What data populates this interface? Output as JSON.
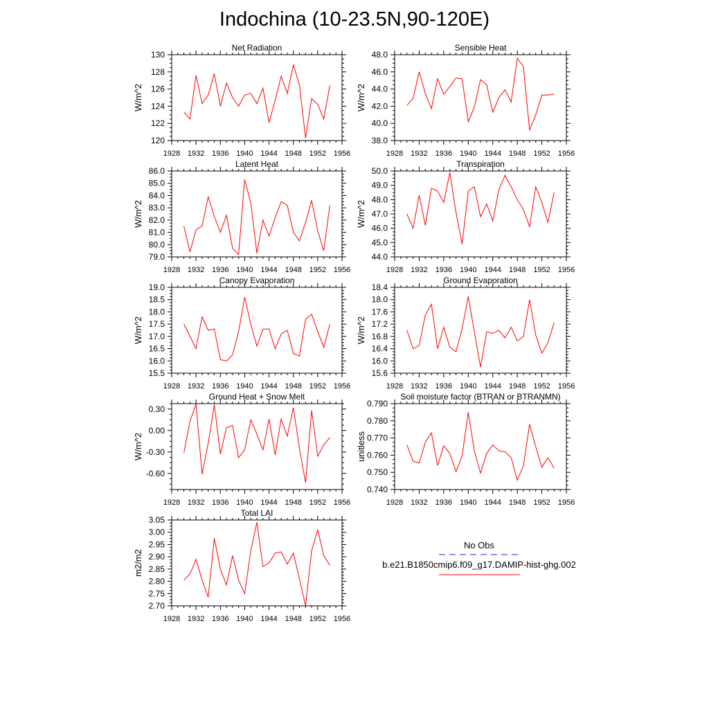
{
  "page": {
    "title": "Indochina (10-23.5N,90-120E)"
  },
  "legend": {
    "obs_label": "No Obs",
    "model_label": "b.e21.B1850cmip6.f09_g17.DAMIP-hist-ghg.002",
    "obs_color": "#2222cc",
    "model_color": "#ff0000"
  },
  "chart_data": [
    {
      "type": "line",
      "title": "Net Radiation",
      "ylabel": "W/m^2",
      "xlim": [
        1928,
        1956
      ],
      "xticks": [
        1928,
        1932,
        1936,
        1940,
        1944,
        1948,
        1952,
        1956
      ],
      "ylim": [
        120,
        130
      ],
      "yticks": [
        "120",
        "122",
        "124",
        "126",
        "128",
        "130"
      ],
      "x": [
        1930,
        1931,
        1932,
        1933,
        1934,
        1935,
        1936,
        1937,
        1938,
        1939,
        1940,
        1941,
        1942,
        1943,
        1944,
        1945,
        1946,
        1947,
        1948,
        1949,
        1950,
        1951,
        1952,
        1953,
        1954
      ],
      "series": [
        {
          "color": "#ff0000",
          "values": [
            123.3,
            122.5,
            127.6,
            124.3,
            125.3,
            127.8,
            124.0,
            126.7,
            125.0,
            124.0,
            125.3,
            125.5,
            124.3,
            126.1,
            122.1,
            124.7,
            127.5,
            125.5,
            128.8,
            126.5,
            120.3,
            124.9,
            124.2,
            122.5,
            126.4
          ]
        }
      ]
    },
    {
      "type": "line",
      "title": "Sensible Heat",
      "ylabel": "W/m^2",
      "xlim": [
        1928,
        1956
      ],
      "xticks": [
        1928,
        1932,
        1936,
        1940,
        1944,
        1948,
        1952,
        1956
      ],
      "ylim": [
        38,
        48
      ],
      "yticks": [
        "38.0",
        "40.0",
        "42.0",
        "44.0",
        "46.0",
        "48.0"
      ],
      "x": [
        1930,
        1931,
        1932,
        1933,
        1934,
        1935,
        1936,
        1937,
        1938,
        1939,
        1940,
        1941,
        1942,
        1943,
        1944,
        1945,
        1946,
        1947,
        1948,
        1949,
        1950,
        1951,
        1952,
        1953,
        1954
      ],
      "series": [
        {
          "color": "#ff0000",
          "values": [
            42.1,
            42.9,
            46.0,
            43.5,
            41.7,
            45.2,
            43.4,
            44.3,
            45.3,
            45.2,
            40.2,
            41.9,
            45.1,
            44.5,
            41.3,
            43.0,
            43.9,
            42.5,
            47.6,
            46.6,
            39.2,
            41.0,
            43.3,
            43.3,
            43.4
          ]
        }
      ]
    },
    {
      "type": "line",
      "title": "Latent Heat",
      "ylabel": "W/m^2",
      "xlim": [
        1928,
        1956
      ],
      "xticks": [
        1928,
        1932,
        1936,
        1940,
        1944,
        1948,
        1952,
        1956
      ],
      "ylim": [
        79,
        86
      ],
      "yticks": [
        "79.0",
        "80.0",
        "81.0",
        "82.0",
        "83.0",
        "84.0",
        "85.0",
        "86.0"
      ],
      "x": [
        1930,
        1931,
        1932,
        1933,
        1934,
        1935,
        1936,
        1937,
        1938,
        1939,
        1940,
        1941,
        1942,
        1943,
        1944,
        1945,
        1946,
        1947,
        1948,
        1949,
        1950,
        1951,
        1952,
        1953,
        1954
      ],
      "series": [
        {
          "color": "#ff0000",
          "values": [
            81.5,
            79.4,
            81.2,
            81.5,
            83.9,
            82.3,
            81.0,
            82.4,
            79.7,
            79.2,
            85.3,
            83.4,
            79.3,
            82.0,
            80.7,
            82.2,
            83.5,
            83.2,
            81.0,
            80.3,
            81.8,
            83.6,
            81.1,
            79.5,
            83.2
          ]
        }
      ]
    },
    {
      "type": "line",
      "title": "Transpiration",
      "ylabel": "W/m^2",
      "xlim": [
        1928,
        1956
      ],
      "xticks": [
        1928,
        1932,
        1936,
        1940,
        1944,
        1948,
        1952,
        1956
      ],
      "ylim": [
        44,
        50
      ],
      "yticks": [
        "44.0",
        "45.0",
        "46.0",
        "47.0",
        "48.0",
        "49.0",
        "50.0"
      ],
      "x": [
        1930,
        1931,
        1932,
        1933,
        1934,
        1935,
        1936,
        1937,
        1938,
        1939,
        1940,
        1941,
        1942,
        1943,
        1944,
        1945,
        1946,
        1947,
        1948,
        1949,
        1950,
        1951,
        1952,
        1953,
        1954
      ],
      "series": [
        {
          "color": "#ff0000",
          "values": [
            47.0,
            46.0,
            48.3,
            46.2,
            48.8,
            48.6,
            47.8,
            49.9,
            47.1,
            44.9,
            48.6,
            48.9,
            46.8,
            47.7,
            46.5,
            48.7,
            49.7,
            48.9,
            48.0,
            47.3,
            46.1,
            48.9,
            47.8,
            46.4,
            48.5
          ]
        }
      ]
    },
    {
      "type": "line",
      "title": "Canopy Evaporation",
      "ylabel": "W/m^2",
      "xlim": [
        1928,
        1956
      ],
      "xticks": [
        1928,
        1932,
        1936,
        1940,
        1944,
        1948,
        1952,
        1956
      ],
      "ylim": [
        15.5,
        19
      ],
      "yticks": [
        "15.5",
        "16.0",
        "16.5",
        "17.0",
        "17.5",
        "18.0",
        "18.5",
        "19.0"
      ],
      "x": [
        1930,
        1931,
        1932,
        1933,
        1934,
        1935,
        1936,
        1937,
        1938,
        1939,
        1940,
        1941,
        1942,
        1943,
        1944,
        1945,
        1946,
        1947,
        1948,
        1949,
        1950,
        1951,
        1952,
        1953,
        1954
      ],
      "series": [
        {
          "color": "#ff0000",
          "values": [
            17.5,
            17.0,
            16.5,
            17.8,
            17.25,
            17.3,
            16.05,
            16.0,
            16.25,
            17.2,
            18.6,
            17.5,
            16.6,
            17.3,
            17.3,
            16.5,
            17.1,
            17.25,
            16.3,
            16.2,
            17.7,
            17.9,
            17.2,
            16.55,
            17.5
          ]
        }
      ]
    },
    {
      "type": "line",
      "title": "Ground Evaporation",
      "ylabel": "W/m^2",
      "xlim": [
        1928,
        1956
      ],
      "xticks": [
        1928,
        1932,
        1936,
        1940,
        1944,
        1948,
        1952,
        1956
      ],
      "ylim": [
        15.6,
        18.4
      ],
      "yticks": [
        "15.6",
        "16.0",
        "16.4",
        "16.8",
        "17.2",
        "17.6",
        "18.0",
        "18.4"
      ],
      "x": [
        1930,
        1931,
        1932,
        1933,
        1934,
        1935,
        1936,
        1937,
        1938,
        1939,
        1940,
        1941,
        1942,
        1943,
        1944,
        1945,
        1946,
        1947,
        1948,
        1949,
        1950,
        1951,
        1952,
        1953,
        1954
      ],
      "series": [
        {
          "color": "#ff0000",
          "values": [
            17.0,
            16.4,
            16.5,
            17.5,
            17.85,
            16.4,
            17.1,
            16.45,
            16.3,
            17.05,
            18.1,
            16.95,
            15.8,
            16.95,
            16.9,
            17.0,
            16.75,
            17.1,
            16.65,
            16.8,
            18.0,
            16.85,
            16.25,
            16.6,
            17.25
          ]
        }
      ]
    },
    {
      "type": "line",
      "title": "Ground Heat + Snow Melt",
      "ylabel": "W/m^2",
      "xlim": [
        1928,
        1956
      ],
      "xticks": [
        1928,
        1932,
        1936,
        1940,
        1944,
        1948,
        1952,
        1956
      ],
      "ylim": [
        -0.825,
        0.375
      ],
      "yticks_values": [
        -0.6,
        -0.3,
        0.0,
        0.3
      ],
      "yticks": [
        "-0.60",
        "-0.30",
        "0.00",
        "0.30"
      ],
      "x": [
        1930,
        1931,
        1932,
        1933,
        1934,
        1935,
        1936,
        1937,
        1938,
        1939,
        1940,
        1941,
        1942,
        1943,
        1944,
        1945,
        1946,
        1947,
        1948,
        1949,
        1950,
        1951,
        1952,
        1953,
        1954
      ],
      "series": [
        {
          "color": "#ff0000",
          "values": [
            -0.31,
            0.13,
            0.37,
            -0.61,
            -0.18,
            0.36,
            -0.33,
            0.04,
            0.07,
            -0.38,
            -0.27,
            0.15,
            -0.05,
            -0.27,
            0.16,
            -0.34,
            0.16,
            -0.08,
            0.32,
            -0.25,
            -0.73,
            0.28,
            -0.36,
            -0.2,
            -0.1
          ]
        }
      ]
    },
    {
      "type": "line",
      "title": "Soil moisture factor (BTRAN or BTRANMN)",
      "ylabel": "unitless",
      "xlim": [
        1928,
        1956
      ],
      "xticks": [
        1928,
        1932,
        1936,
        1940,
        1944,
        1948,
        1952,
        1956
      ],
      "ylim": [
        0.74,
        0.79
      ],
      "yticks": [
        "0.740",
        "0.750",
        "0.760",
        "0.770",
        "0.780",
        "0.790"
      ],
      "x": [
        1930,
        1931,
        1932,
        1933,
        1934,
        1935,
        1936,
        1937,
        1938,
        1939,
        1940,
        1941,
        1942,
        1943,
        1944,
        1945,
        1946,
        1947,
        1948,
        1949,
        1950,
        1951,
        1952,
        1953,
        1954
      ],
      "series": [
        {
          "color": "#ff0000",
          "values": [
            0.766,
            0.7565,
            0.7555,
            0.7675,
            0.773,
            0.754,
            0.7655,
            0.761,
            0.7505,
            0.7595,
            0.785,
            0.7625,
            0.7495,
            0.761,
            0.766,
            0.7625,
            0.762,
            0.7585,
            0.7455,
            0.754,
            0.778,
            0.765,
            0.753,
            0.7585,
            0.7525
          ]
        }
      ]
    },
    {
      "type": "line",
      "title": "Total LAI",
      "ylabel": "m2/m2",
      "xlim": [
        1928,
        1956
      ],
      "xticks": [
        1928,
        1932,
        1936,
        1940,
        1944,
        1948,
        1952,
        1956
      ],
      "ylim": [
        2.7,
        3.05
      ],
      "yticks": [
        "2.70",
        "2.75",
        "2.80",
        "2.85",
        "2.90",
        "2.95",
        "3.00",
        "3.05"
      ],
      "x": [
        1930,
        1931,
        1932,
        1933,
        1934,
        1935,
        1936,
        1937,
        1938,
        1939,
        1940,
        1941,
        1942,
        1943,
        1944,
        1945,
        1946,
        1947,
        1948,
        1949,
        1950,
        1951,
        1952,
        1953,
        1954
      ],
      "series": [
        {
          "color": "#ff0000",
          "values": [
            2.805,
            2.83,
            2.89,
            2.805,
            2.735,
            2.975,
            2.85,
            2.785,
            2.905,
            2.805,
            2.75,
            2.925,
            3.04,
            2.86,
            2.875,
            2.915,
            2.92,
            2.87,
            2.915,
            2.81,
            2.7,
            2.925,
            3.01,
            2.905,
            2.865
          ]
        }
      ]
    }
  ]
}
